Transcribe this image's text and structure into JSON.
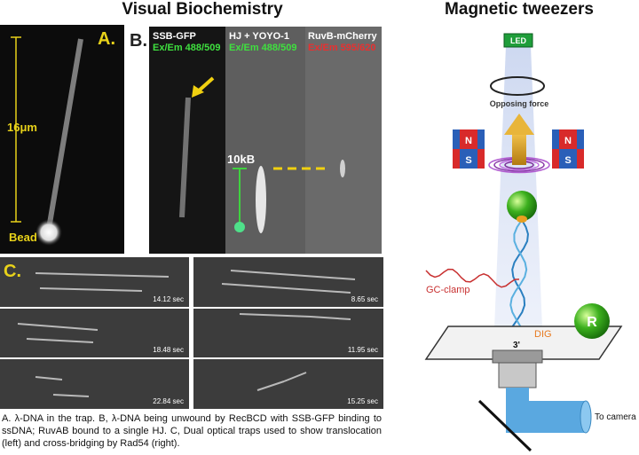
{
  "titles": {
    "left": "Visual Biochemistry",
    "right": "Magnetic tweezers"
  },
  "panel_a": {
    "label": "A.",
    "scale": "16μm",
    "bead": "Bead"
  },
  "panel_b": {
    "label": "B.",
    "channels": [
      {
        "name": "SSB-GFP",
        "filter": "Ex/Em 488/509"
      },
      {
        "name": "HJ + YOYO-1",
        "filter": "Ex/Em 488/509"
      },
      {
        "name": "RuvB-mCherry",
        "filter": "Ex/Em 595/620"
      }
    ],
    "size_label": "10kB"
  },
  "panel_c": {
    "label": "C.",
    "frames": [
      "14.12 sec",
      "8.65 sec",
      "18.48 sec",
      "11.95 sec",
      "22.84 sec",
      "15.25 sec"
    ]
  },
  "caption": "A. λ-DNA in the trap. B, λ-DNA being unwound by RecBCD with SSB-GFP binding to ssDNA; RuvAB bound to a single HJ. C, Dual optical traps used to show translocation (left) and cross-bridging by Rad54 (right).",
  "diagram": {
    "led": "LED",
    "force": "Opposing force",
    "magnets": [
      "N",
      "S",
      "N",
      "S"
    ],
    "gc_clamp": "GC-clamp",
    "dig": "DIG",
    "end": "3'",
    "receptor": "R",
    "camera": "To camera"
  }
}
